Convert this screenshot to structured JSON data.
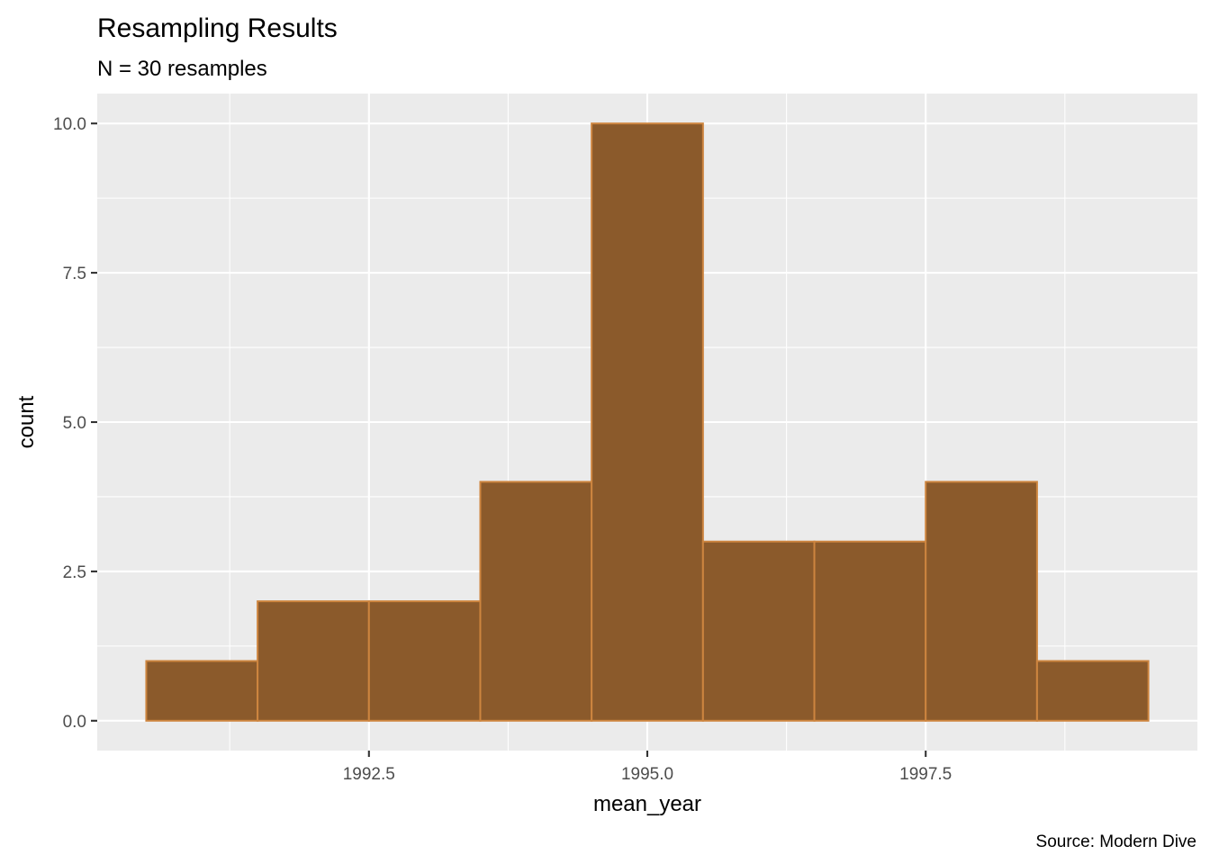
{
  "chart_data": {
    "type": "bar",
    "title": "Resampling Results",
    "subtitle": "N = 30 resamples",
    "xlabel": "mean_year",
    "ylabel": "count",
    "caption": "Source: Modern Dive",
    "bins": [
      {
        "x_start": 1990.5,
        "x_end": 1991.5,
        "count": 1
      },
      {
        "x_start": 1991.5,
        "x_end": 1992.5,
        "count": 2
      },
      {
        "x_start": 1992.5,
        "x_end": 1993.5,
        "count": 2
      },
      {
        "x_start": 1993.5,
        "x_end": 1994.5,
        "count": 4
      },
      {
        "x_start": 1994.5,
        "x_end": 1995.5,
        "count": 10
      },
      {
        "x_start": 1995.5,
        "x_end": 1996.5,
        "count": 3
      },
      {
        "x_start": 1996.5,
        "x_end": 1997.5,
        "count": 3
      },
      {
        "x_start": 1997.5,
        "x_end": 1998.5,
        "count": 4
      },
      {
        "x_start": 1998.5,
        "x_end": 1999.5,
        "count": 1
      }
    ],
    "xlim": [
      1990.06,
      1999.94
    ],
    "ylim": [
      -0.5,
      10.5
    ],
    "x_ticks": [
      {
        "value": 1992.5,
        "label": "1992.5"
      },
      {
        "value": 1995.0,
        "label": "1995.0"
      },
      {
        "value": 1997.5,
        "label": "1997.5"
      }
    ],
    "y_ticks": [
      {
        "value": 0.0,
        "label": "0.0"
      },
      {
        "value": 2.5,
        "label": "2.5"
      },
      {
        "value": 5.0,
        "label": "5.0"
      },
      {
        "value": 7.5,
        "label": "7.5"
      },
      {
        "value": 10.0,
        "label": "10.0"
      }
    ],
    "grid": true,
    "colors": {
      "bar_fill": "#8B5A2B",
      "bar_outline": "#CD853F",
      "panel_background": "#EBEBEB",
      "gridline": "#FFFFFF"
    }
  }
}
